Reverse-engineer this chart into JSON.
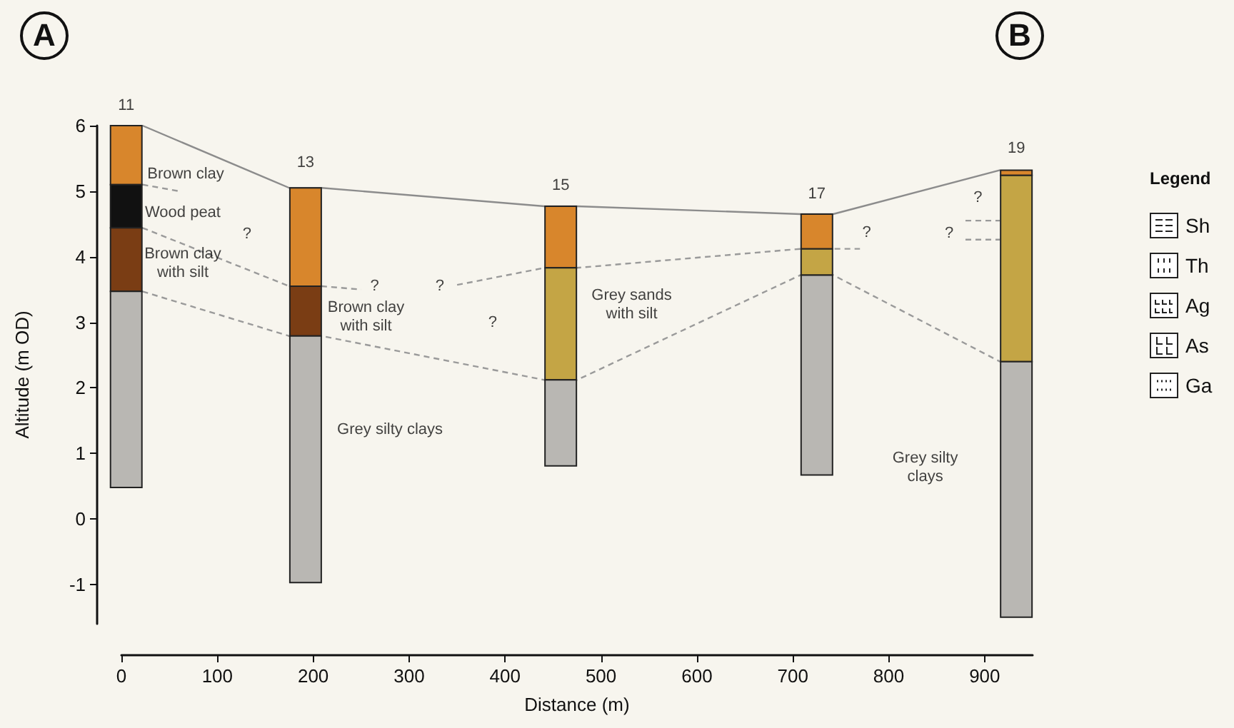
{
  "chart_data": {
    "type": "bar",
    "xlabel": "Distance (m)",
    "ylabel": "Altitude (m OD)",
    "legend_title": "Legend",
    "x": [
      5,
      192,
      458,
      725,
      933
    ],
    "xlim": [
      0,
      950
    ],
    "xticks": [
      0,
      100,
      200,
      300,
      400,
      500,
      600,
      700,
      800,
      900
    ],
    "ylim": [
      -1.6,
      6
    ],
    "yticks": [
      -1,
      0,
      1,
      2,
      3,
      4,
      5,
      6
    ],
    "series": [
      {
        "type": "line",
        "color": "#8c8c8c",
        "line_style": "solid",
        "x": [
          22,
          175,
          209,
          441,
          475,
          708,
          742,
          916
        ],
        "values": [
          6.0,
          5.05,
          5.05,
          4.77,
          4.77,
          4.65,
          4.65,
          5.32
        ]
      },
      {
        "type": "line",
        "color": "#9a9a9a",
        "line_style": "dashed",
        "x": [
          22,
          60
        ],
        "values": [
          5.1,
          5.0
        ]
      },
      {
        "type": "line",
        "color": "#9a9a9a",
        "line_style": "dashed",
        "x": [
          22,
          175,
          209,
          250
        ],
        "values": [
          4.44,
          3.55,
          3.55,
          3.5
        ]
      },
      {
        "type": "line",
        "color": "#9a9a9a",
        "line_style": "dashed",
        "x": [
          350,
          441,
          475,
          708,
          742,
          770
        ],
        "values": [
          3.57,
          3.83,
          3.83,
          4.12,
          4.12,
          4.12
        ]
      },
      {
        "type": "line",
        "color": "#9a9a9a",
        "line_style": "dashed",
        "x": [
          22,
          175,
          209,
          441,
          475,
          708,
          742,
          916
        ],
        "values": [
          3.47,
          2.79,
          2.79,
          2.12,
          2.12,
          3.72,
          3.72,
          2.4
        ]
      },
      {
        "type": "line",
        "color": "#9a9a9a",
        "line_style": "dashed",
        "x": [
          880,
          916
        ],
        "values": [
          4.55,
          4.55
        ]
      },
      {
        "type": "line",
        "color": "#9a9a9a",
        "line_style": "dashed",
        "x": [
          880,
          916
        ],
        "values": [
          4.26,
          4.26
        ]
      },
      {
        "color": "#d8862c",
        "values": [
          0.9,
          1.5,
          0.94,
          0.53,
          0.08
        ],
        "base": [
          5.1,
          3.55,
          3.83,
          4.12,
          5.24
        ]
      },
      {
        "color": "#111111",
        "values": [
          0.66,
          null,
          null,
          null,
          null
        ],
        "base": [
          4.44,
          null,
          null,
          null,
          null
        ]
      },
      {
        "color": "#7a3d14",
        "values": [
          0.97,
          0.76,
          null,
          null,
          null
        ],
        "base": [
          3.47,
          2.79,
          null,
          null,
          null
        ]
      },
      {
        "color": "#c4a545",
        "values": [
          null,
          null,
          1.71,
          0.4,
          2.84
        ],
        "base": [
          null,
          null,
          2.12,
          3.72,
          2.4
        ]
      },
      {
        "color": "#b9b7b3",
        "values": [
          2.99,
          3.76,
          1.31,
          3.05,
          3.9
        ],
        "base": [
          0.48,
          -0.97,
          0.81,
          0.67,
          -1.5
        ]
      }
    ],
    "annotations": [
      "A",
      "B",
      "Sh",
      "Th",
      "Ag",
      "As",
      "Ga",
      "11",
      "13",
      "15",
      "17",
      "19",
      "Brown clay",
      "Wood peat",
      "Brown clay\nwith silt",
      "?",
      "?",
      "?",
      "Brown clay\nwith silt",
      "Grey silty clays",
      "?",
      "Grey sands\nwith silt",
      "?",
      "Grey silty\nclays",
      "?",
      "?"
    ]
  }
}
